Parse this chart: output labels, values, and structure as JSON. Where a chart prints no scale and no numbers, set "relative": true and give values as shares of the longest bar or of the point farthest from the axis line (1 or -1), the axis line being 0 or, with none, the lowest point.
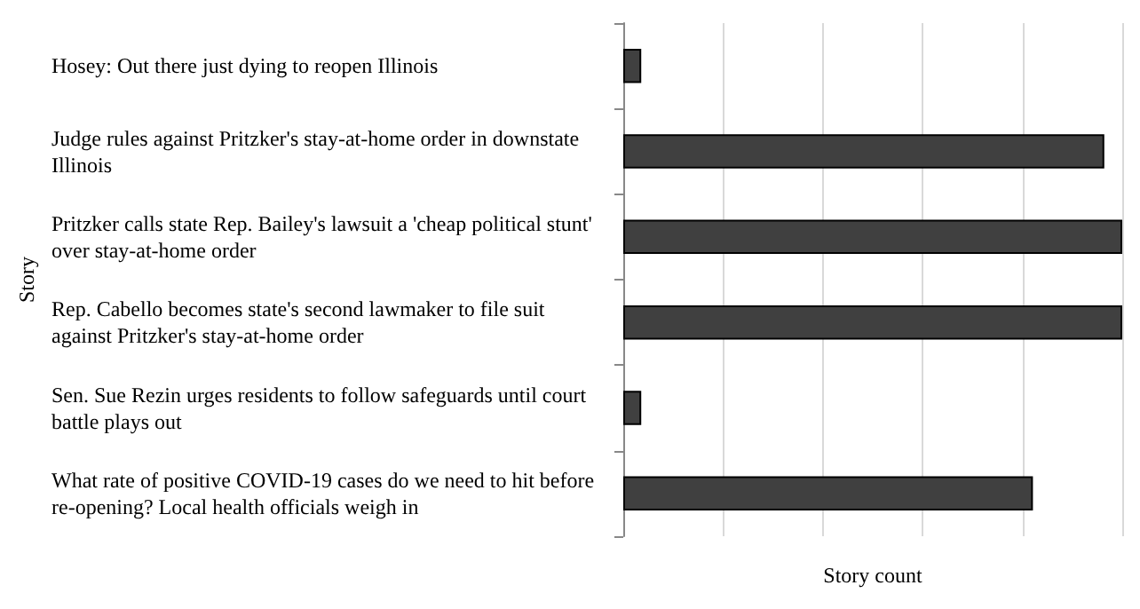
{
  "chart_data": {
    "type": "bar",
    "orientation": "horizontal",
    "relative": true,
    "xlabel": "Story count",
    "ylabel": "Story",
    "grid": "x",
    "color": "#404040",
    "categories": [
      "Hosey: Out there just dying to reopen Illinois",
      "Judge rules against Pritzker's stay-at-home order in downstate Illinois",
      "Pritzker calls state Rep. Bailey's lawsuit a 'cheap political stunt' over stay-at-home order",
      "Rep. Cabello becomes state's second lawmaker to file suit against Pritzker's stay-at-home order",
      "Sen. Sue Rezin urges residents to follow safeguards until court battle plays out",
      "What rate of positive COVID-19 cases do we need to hit before re-opening? Local health officials weigh in"
    ],
    "values": [
      0.036,
      0.964,
      1,
      1,
      0.036,
      0.821
    ]
  }
}
